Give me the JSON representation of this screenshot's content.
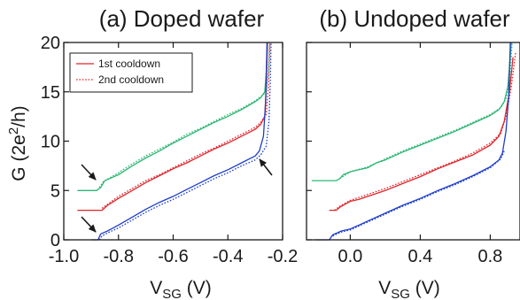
{
  "chart_data": [
    {
      "type": "line",
      "title": "(a) Doped wafer",
      "xlabel_main": "V",
      "xlabel_sub": "SG",
      "xlabel_unit": " (V)",
      "ylabel": "G (2e²/h)",
      "ylabel_main": "G (2e",
      "ylabel_sup": "2",
      "ylabel_end": "/h)",
      "xlim": [
        -1.0,
        -0.2
      ],
      "ylim": [
        0,
        20
      ],
      "xticks": [
        -1.0,
        -0.8,
        -0.6,
        -0.4,
        -0.2
      ],
      "xtick_labels": [
        "-1.0",
        "-0.8",
        "-0.6",
        "-0.4",
        "-0.2"
      ],
      "yticks": [
        0,
        5,
        10,
        15,
        20
      ],
      "ytick_labels": [
        "0",
        "5",
        "10",
        "15",
        "20"
      ],
      "legend": {
        "position": "top-left",
        "entries": [
          "1st cooldown",
          "2nd cooldown"
        ]
      },
      "annotations": [
        "arrow near (-0.87, 5.5)",
        "arrow near (-0.87, 0.4)",
        "arrow near (-0.27, 12)"
      ],
      "series": [
        {
          "color": "#2bb673",
          "style": "solid",
          "points": [
            [
              -0.95,
              5.0
            ],
            [
              -0.88,
              5.0
            ],
            [
              -0.865,
              5.3
            ],
            [
              -0.85,
              6.0
            ],
            [
              -0.8,
              6.6
            ],
            [
              -0.75,
              7.5
            ],
            [
              -0.7,
              8.3
            ],
            [
              -0.65,
              9.0
            ],
            [
              -0.6,
              9.8
            ],
            [
              -0.55,
              10.5
            ],
            [
              -0.5,
              11.2
            ],
            [
              -0.45,
              11.9
            ],
            [
              -0.4,
              12.5
            ],
            [
              -0.35,
              13.2
            ],
            [
              -0.3,
              14.0
            ],
            [
              -0.28,
              14.4
            ],
            [
              -0.265,
              15.0
            ],
            [
              -0.26,
              17.0
            ],
            [
              -0.255,
              20.0
            ]
          ]
        },
        {
          "color": "#2bb673",
          "style": "dotted",
          "points": [
            [
              -0.87,
              5.3
            ],
            [
              -0.855,
              5.9
            ],
            [
              -0.8,
              6.8
            ],
            [
              -0.75,
              7.7
            ],
            [
              -0.7,
              8.5
            ],
            [
              -0.65,
              9.2
            ],
            [
              -0.6,
              9.9
            ],
            [
              -0.55,
              10.7
            ],
            [
              -0.5,
              11.3
            ],
            [
              -0.45,
              12.0
            ],
            [
              -0.4,
              12.7
            ],
            [
              -0.35,
              13.3
            ],
            [
              -0.3,
              14.1
            ],
            [
              -0.28,
              14.5
            ],
            [
              -0.26,
              15.0
            ],
            [
              -0.252,
              17.0
            ],
            [
              -0.247,
              20.0
            ]
          ]
        },
        {
          "color": "#e0242a",
          "style": "solid",
          "points": [
            [
              -0.95,
              3.0
            ],
            [
              -0.86,
              3.0
            ],
            [
              -0.84,
              3.5
            ],
            [
              -0.8,
              4.2
            ],
            [
              -0.75,
              5.0
            ],
            [
              -0.7,
              5.8
            ],
            [
              -0.65,
              6.5
            ],
            [
              -0.6,
              7.2
            ],
            [
              -0.55,
              7.8
            ],
            [
              -0.5,
              8.5
            ],
            [
              -0.45,
              9.2
            ],
            [
              -0.4,
              9.8
            ],
            [
              -0.35,
              10.5
            ],
            [
              -0.3,
              11.2
            ],
            [
              -0.28,
              11.7
            ],
            [
              -0.265,
              12.5
            ],
            [
              -0.26,
              15.5
            ],
            [
              -0.255,
              20.0
            ]
          ]
        },
        {
          "color": "#e0242a",
          "style": "dotted",
          "points": [
            [
              -0.86,
              3.2
            ],
            [
              -0.84,
              3.6
            ],
            [
              -0.8,
              4.4
            ],
            [
              -0.75,
              5.2
            ],
            [
              -0.7,
              6.0
            ],
            [
              -0.65,
              6.6
            ],
            [
              -0.6,
              7.3
            ],
            [
              -0.55,
              8.0
            ],
            [
              -0.5,
              8.7
            ],
            [
              -0.45,
              9.3
            ],
            [
              -0.4,
              10.0
            ],
            [
              -0.35,
              10.7
            ],
            [
              -0.3,
              11.4
            ],
            [
              -0.28,
              11.9
            ],
            [
              -0.26,
              12.7
            ],
            [
              -0.252,
              15.5
            ],
            [
              -0.246,
              20.0
            ]
          ]
        },
        {
          "color": "#1e3ec8",
          "style": "solid",
          "points": [
            [
              -0.9,
              0.0
            ],
            [
              -0.875,
              0.0
            ],
            [
              -0.865,
              0.6
            ],
            [
              -0.84,
              0.9
            ],
            [
              -0.8,
              1.5
            ],
            [
              -0.75,
              2.3
            ],
            [
              -0.7,
              3.1
            ],
            [
              -0.65,
              3.8
            ],
            [
              -0.6,
              4.4
            ],
            [
              -0.55,
              5.1
            ],
            [
              -0.5,
              5.8
            ],
            [
              -0.45,
              6.5
            ],
            [
              -0.4,
              7.1
            ],
            [
              -0.35,
              7.8
            ],
            [
              -0.3,
              8.5
            ],
            [
              -0.285,
              9.0
            ],
            [
              -0.27,
              10.5
            ],
            [
              -0.262,
              14.0
            ],
            [
              -0.257,
              20.0
            ]
          ]
        },
        {
          "color": "#1e3ec8",
          "style": "dotted",
          "points": [
            [
              -0.87,
              0.0
            ],
            [
              -0.86,
              0.4
            ],
            [
              -0.84,
              0.7
            ],
            [
              -0.8,
              1.2
            ],
            [
              -0.75,
              2.0
            ],
            [
              -0.7,
              2.8
            ],
            [
              -0.65,
              3.5
            ],
            [
              -0.6,
              4.1
            ],
            [
              -0.55,
              4.8
            ],
            [
              -0.5,
              5.5
            ],
            [
              -0.45,
              6.2
            ],
            [
              -0.4,
              6.8
            ],
            [
              -0.35,
              7.5
            ],
            [
              -0.3,
              8.1
            ],
            [
              -0.28,
              8.6
            ],
            [
              -0.26,
              9.5
            ],
            [
              -0.25,
              12.0
            ],
            [
              -0.245,
              16.0
            ],
            [
              -0.242,
              20.0
            ]
          ]
        }
      ]
    },
    {
      "type": "line",
      "title": "(b) Undoped wafer",
      "xlabel_main": "V",
      "xlabel_sub": "SG",
      "xlabel_unit": " (V)",
      "xlim": [
        -0.25,
        0.97
      ],
      "ylim": [
        0,
        20
      ],
      "xticks": [
        0.0,
        0.4,
        0.8
      ],
      "xtick_labels": [
        "0.0",
        "0.4",
        "0.8"
      ],
      "yticks": [
        0,
        5,
        10,
        15,
        20
      ],
      "series": [
        {
          "color": "#2bb673",
          "style": "solid",
          "points": [
            [
              -0.22,
              6.0
            ],
            [
              -0.08,
              6.0
            ],
            [
              -0.06,
              6.2
            ],
            [
              -0.04,
              6.6
            ],
            [
              0.0,
              6.9
            ],
            [
              0.05,
              7.1
            ],
            [
              0.1,
              7.3
            ],
            [
              0.15,
              7.8
            ],
            [
              0.2,
              8.1
            ],
            [
              0.3,
              8.9
            ],
            [
              0.4,
              9.6
            ],
            [
              0.5,
              10.3
            ],
            [
              0.6,
              11.0
            ],
            [
              0.7,
              11.8
            ],
            [
              0.8,
              12.6
            ],
            [
              0.85,
              13.2
            ],
            [
              0.88,
              14.0
            ],
            [
              0.9,
              15.5
            ],
            [
              0.91,
              17.5
            ],
            [
              0.92,
              20.0
            ]
          ]
        },
        {
          "color": "#2bb673",
          "style": "dotted",
          "points": [
            [
              -0.06,
              6.2
            ],
            [
              0.0,
              6.9
            ],
            [
              0.1,
              7.4
            ],
            [
              0.2,
              8.2
            ],
            [
              0.3,
              9.0
            ],
            [
              0.4,
              9.7
            ],
            [
              0.5,
              10.4
            ],
            [
              0.6,
              11.1
            ],
            [
              0.7,
              11.9
            ],
            [
              0.8,
              12.7
            ],
            [
              0.86,
              13.4
            ],
            [
              0.89,
              14.3
            ],
            [
              0.91,
              16.0
            ],
            [
              0.925,
              20.0
            ]
          ]
        },
        {
          "color": "#e0242a",
          "style": "solid",
          "points": [
            [
              -0.12,
              3.0
            ],
            [
              -0.08,
              3.0
            ],
            [
              -0.06,
              3.3
            ],
            [
              -0.02,
              3.7
            ],
            [
              0.0,
              3.9
            ],
            [
              0.05,
              4.1
            ],
            [
              0.1,
              4.4
            ],
            [
              0.15,
              4.7
            ],
            [
              0.2,
              5.0
            ],
            [
              0.3,
              5.7
            ],
            [
              0.4,
              6.4
            ],
            [
              0.5,
              7.2
            ],
            [
              0.6,
              7.9
            ],
            [
              0.7,
              8.6
            ],
            [
              0.8,
              9.6
            ],
            [
              0.85,
              10.5
            ],
            [
              0.88,
              12.0
            ],
            [
              0.91,
              15.0
            ],
            [
              0.93,
              18.5
            ]
          ]
        },
        {
          "color": "#e0242a",
          "style": "dotted",
          "points": [
            [
              -0.09,
              3.0
            ],
            [
              -0.06,
              3.4
            ],
            [
              0.0,
              4.0
            ],
            [
              0.1,
              4.6
            ],
            [
              0.2,
              5.2
            ],
            [
              0.3,
              5.9
            ],
            [
              0.4,
              6.6
            ],
            [
              0.5,
              7.3
            ],
            [
              0.6,
              8.0
            ],
            [
              0.7,
              8.8
            ],
            [
              0.8,
              9.8
            ],
            [
              0.86,
              10.8
            ],
            [
              0.89,
              12.5
            ],
            [
              0.92,
              15.5
            ],
            [
              0.945,
              19.0
            ]
          ]
        },
        {
          "color": "#1e3ec8",
          "style": "solid",
          "points": [
            [
              -0.2,
              0.0
            ],
            [
              -0.12,
              0.0
            ],
            [
              -0.1,
              0.5
            ],
            [
              -0.05,
              0.9
            ],
            [
              0.0,
              1.1
            ],
            [
              0.05,
              1.5
            ],
            [
              0.1,
              1.9
            ],
            [
              0.2,
              2.7
            ],
            [
              0.3,
              3.5
            ],
            [
              0.4,
              4.2
            ],
            [
              0.5,
              5.0
            ],
            [
              0.6,
              5.7
            ],
            [
              0.7,
              6.5
            ],
            [
              0.8,
              7.4
            ],
            [
              0.85,
              8.1
            ],
            [
              0.87,
              8.8
            ],
            [
              0.89,
              11.0
            ],
            [
              0.905,
              14.5
            ],
            [
              0.915,
              20.0
            ]
          ]
        },
        {
          "color": "#1e3ec8",
          "style": "dotted",
          "points": [
            [
              -0.1,
              0.4
            ],
            [
              -0.05,
              0.8
            ],
            [
              0.0,
              1.0
            ],
            [
              0.1,
              1.8
            ],
            [
              0.2,
              2.6
            ],
            [
              0.3,
              3.4
            ],
            [
              0.4,
              4.1
            ],
            [
              0.5,
              4.9
            ],
            [
              0.6,
              5.6
            ],
            [
              0.7,
              6.4
            ],
            [
              0.8,
              7.3
            ],
            [
              0.86,
              8.2
            ],
            [
              0.88,
              9.0
            ]
          ]
        }
      ]
    }
  ]
}
